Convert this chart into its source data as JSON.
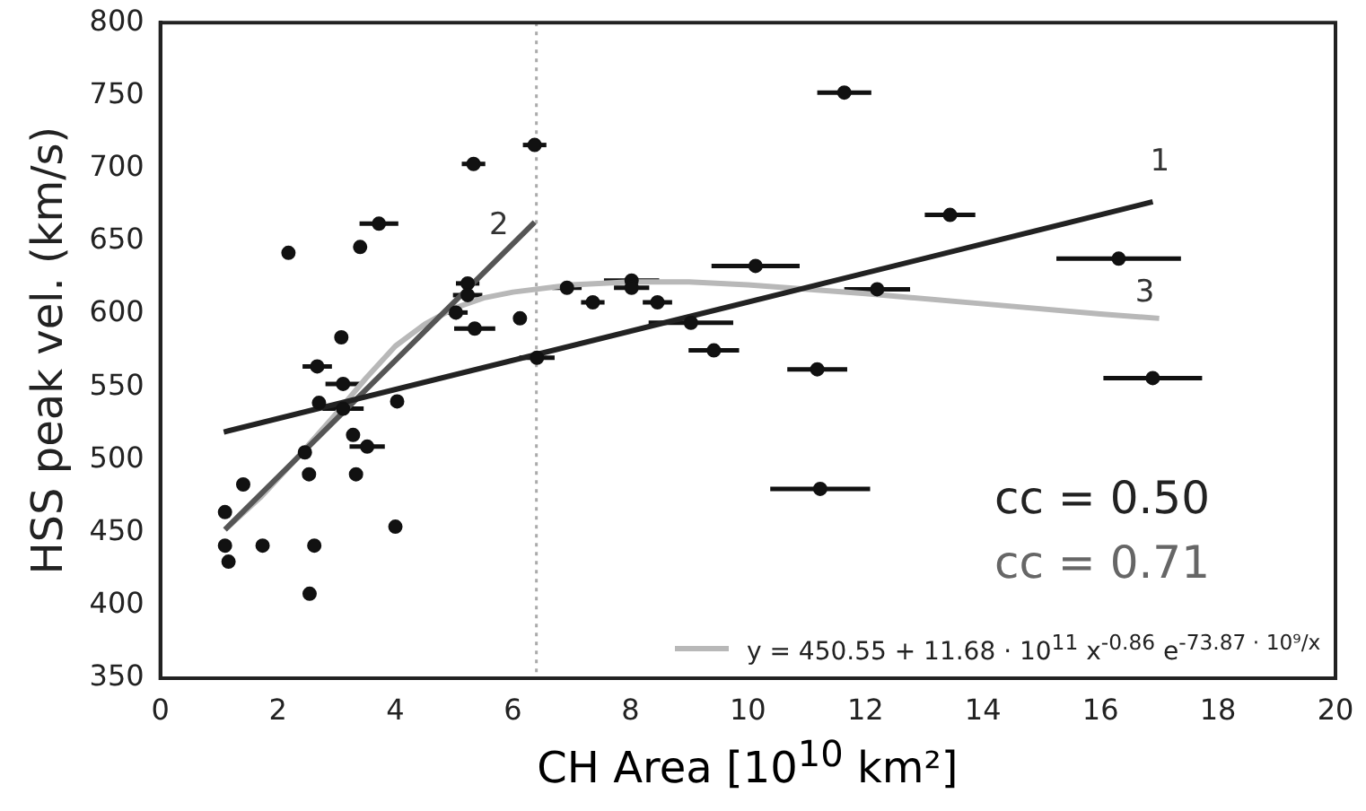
{
  "chart_data": {
    "type": "scatter",
    "xlabel": "CH Area [10$^{10}$ km²]",
    "ylabel": "HSS peak vel. (km/s)",
    "xlim": [
      0,
      20
    ],
    "xticks": [
      0,
      2,
      4,
      6,
      8,
      10,
      12,
      14,
      16,
      18,
      20
    ],
    "ylim": [
      350,
      800
    ],
    "yticks": [
      350,
      400,
      450,
      500,
      550,
      600,
      650,
      700,
      750,
      800
    ],
    "grid": false,
    "legend": "bottom right",
    "series": [
      {
        "color": "#111111",
        "marker": "circle",
        "x": [
          2.18,
          3.4,
          3.72,
          5.33,
          6.37,
          5.23,
          5.23,
          5.03,
          5.35,
          6.12,
          6.92,
          6.41,
          3.08,
          2.67,
          3.11,
          2.7,
          3.11,
          4.03,
          3.28,
          3.52,
          2.46,
          2.53,
          3.33,
          1.41,
          1.1,
          1.1,
          1.74,
          2.62,
          1.16,
          4.0,
          2.54,
          11.64,
          13.44,
          10.13,
          8.02,
          8.02,
          7.36,
          8.46,
          12.2,
          9.03,
          9.42,
          11.18,
          11.23,
          16.31,
          16.89
        ],
        "values": [
          642,
          646,
          662,
          703,
          716,
          621,
          613,
          601,
          590,
          597,
          618,
          570,
          584,
          564,
          552,
          539,
          535,
          540,
          517,
          509,
          505,
          490,
          490,
          483,
          464,
          441,
          441,
          441,
          430,
          454,
          408,
          752,
          668,
          633,
          623,
          618,
          608,
          608,
          617,
          594,
          575,
          562,
          480,
          638,
          556
        ],
        "xerrors": [
          null,
          null,
          0.33,
          0.2,
          0.2,
          0.2,
          0.25,
          0.2,
          0.35,
          null,
          0.25,
          0.3,
          null,
          0.25,
          0.3,
          null,
          0.35,
          null,
          null,
          0.3,
          null,
          null,
          null,
          null,
          null,
          null,
          null,
          null,
          null,
          null,
          null,
          0.46,
          0.43,
          0.75,
          0.47,
          0.3,
          0.2,
          0.25,
          0.56,
          0.72,
          0.43,
          0.51,
          0.85,
          1.06,
          0.84
        ]
      },
      {
        "type": "line",
        "color": "#222222",
        "marker": "none",
        "x": [
          1.08,
          16.89
        ],
        "values": [
          519,
          677
        ]
      },
      {
        "type": "line",
        "color": "#555555",
        "marker": "none",
        "x": [
          1.1,
          6.37
        ],
        "values": [
          452,
          663
        ]
      },
      {
        "type": "line",
        "color": "#b8b8b8",
        "marker": "none",
        "name": "y = 450.55 + 11.68 · 10$^{11}$ x$^{-0.86}$ e$^{-73.87 · 10⁹/x}$",
        "x": [
          1.1,
          1.7,
          2.3,
          3.0,
          3.5,
          4.0,
          4.5,
          5.0,
          5.5,
          6.0,
          7.0,
          8.0,
          9.0,
          10.0,
          12.0,
          14.0,
          16.0,
          17.0
        ],
        "values": [
          452,
          474,
          500,
          532,
          556,
          578,
          593,
          604,
          611,
          615,
          620,
          622,
          622,
          620,
          614,
          607,
          600,
          597
        ]
      }
    ],
    "ref_lines": [
      {
        "axis": "x",
        "value": 6.4,
        "color": "#aaaaaa",
        "line_style": "dotted"
      }
    ],
    "annotations": [
      "1",
      "2",
      "3",
      "cc = 0.50",
      "cc = 0.71"
    ]
  }
}
